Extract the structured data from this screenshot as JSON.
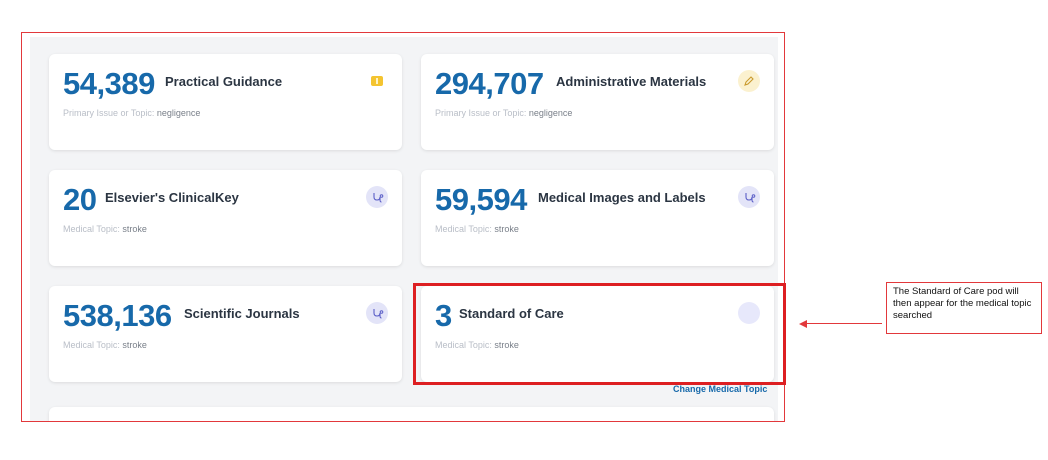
{
  "cards": [
    {
      "count": "54,389",
      "title": "Practical Guidance",
      "meta_label": "Primary Issue or Topic:",
      "meta_value": "negligence",
      "icon": "book-icon"
    },
    {
      "count": "294,707",
      "title": "Administrative Materials",
      "meta_label": "Primary Issue or Topic:",
      "meta_value": "negligence",
      "icon": "pen-icon"
    },
    {
      "count": "20",
      "title": "Elsevier's ClinicalKey",
      "meta_label": "Medical Topic:",
      "meta_value": "stroke",
      "icon": "stethoscope-icon"
    },
    {
      "count": "59,594",
      "title": "Medical Images and Labels",
      "meta_label": "Medical Topic:",
      "meta_value": "stroke",
      "icon": "stethoscope-icon"
    },
    {
      "count": "538,136",
      "title": "Scientific Journals",
      "meta_label": "Medical Topic:",
      "meta_value": "stroke",
      "icon": "stethoscope-icon"
    },
    {
      "count": "3",
      "title": "Standard of Care",
      "meta_label": "Medical Topic:",
      "meta_value": "stroke",
      "icon": "blank-circle-icon"
    }
  ],
  "change_link": "Change Medical Topic",
  "callout": "The Standard of Care pod will then appear for the medical topic searched",
  "colors": {
    "accent": "#1769aa",
    "annotation": "#e2383b"
  }
}
